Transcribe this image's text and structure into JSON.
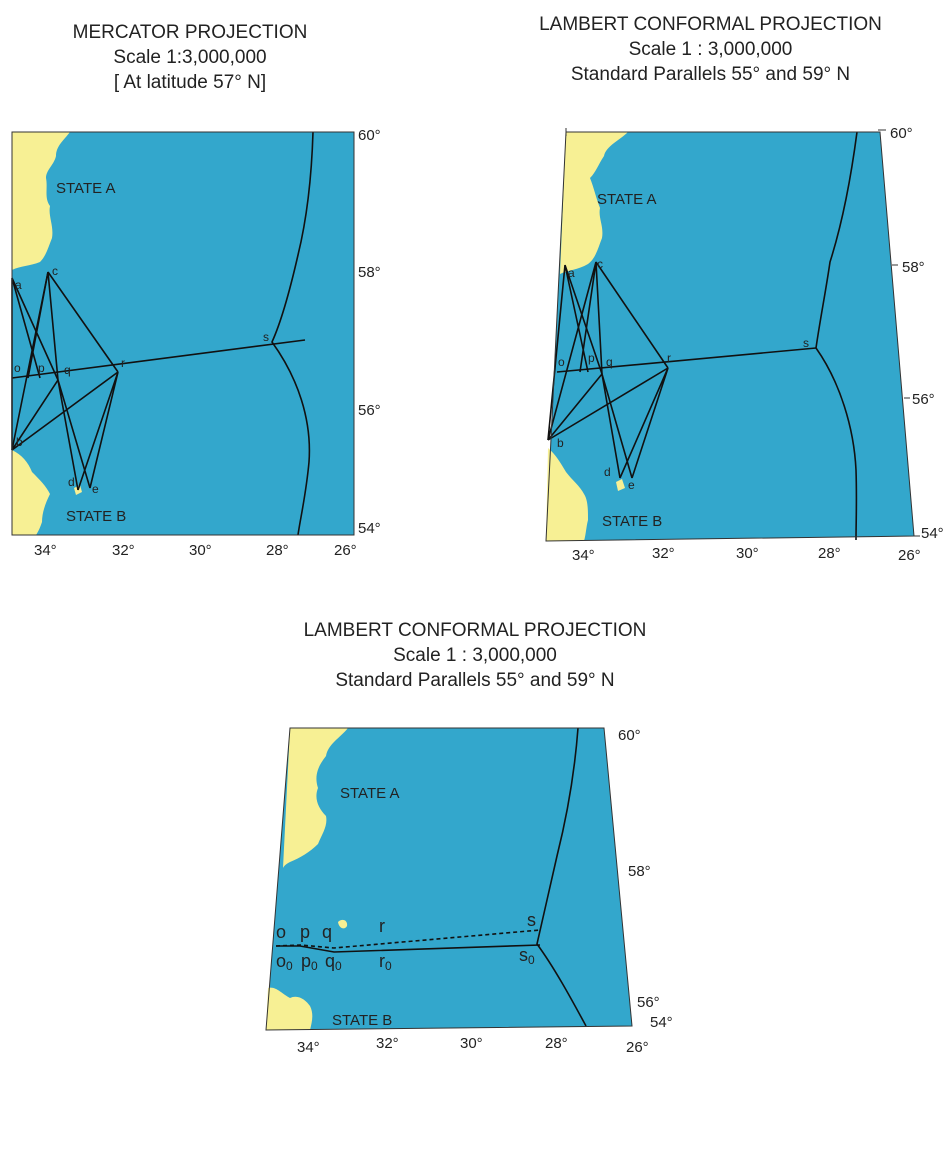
{
  "colors": {
    "sea": "#33a7cc",
    "land": "#f7f094",
    "line": "#111111"
  },
  "maps": [
    {
      "title_lines": [
        "MERCATOR PROJECTION",
        "Scale 1:3,000,000",
        "[ At latitude 57° N]"
      ],
      "state_a": "STATE A",
      "state_b": "STATE B",
      "lat_labels": [
        "60°",
        "58°",
        "56°",
        "54°"
      ],
      "lon_labels": [
        "34°",
        "32°",
        "30°",
        "28°",
        "26°"
      ],
      "points": [
        "a",
        "b",
        "c",
        "d",
        "e",
        "o",
        "p",
        "q",
        "r",
        "s"
      ]
    },
    {
      "title_lines": [
        "LAMBERT CONFORMAL PROJECTION",
        "Scale 1 : 3,000,000",
        "Standard Parallels 55° and 59° N"
      ],
      "state_a": "STATE A",
      "state_b": "STATE B",
      "lat_labels": [
        "60°",
        "58°",
        "56°",
        "54°"
      ],
      "lon_labels": [
        "34°",
        "32°",
        "30°",
        "28°",
        "26°"
      ],
      "points": [
        "a",
        "b",
        "c",
        "d",
        "e",
        "o",
        "p",
        "q",
        "r",
        "s"
      ]
    },
    {
      "title_lines": [
        "LAMBERT CONFORMAL PROJECTION",
        "Scale 1 : 3,000,000",
        "Standard Parallels 55° and 59° N"
      ],
      "state_a": "STATE A",
      "state_b": "STATE B",
      "lat_labels": [
        "60°",
        "58°",
        "56°",
        "54°"
      ],
      "lon_labels": [
        "34°",
        "32°",
        "30°",
        "28°",
        "26°"
      ],
      "points_top": [
        "o",
        "p",
        "q",
        "r",
        "s"
      ],
      "points_bottom": [
        "o",
        "p",
        "q",
        "r",
        "s"
      ],
      "subscript": "0"
    }
  ]
}
